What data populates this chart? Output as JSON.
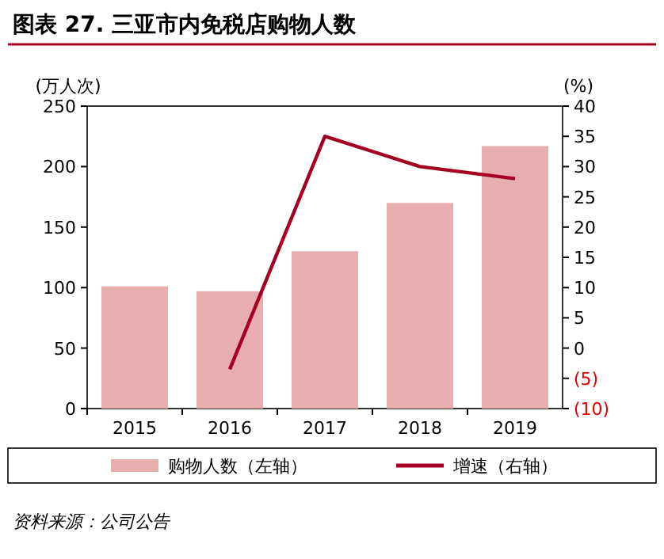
{
  "chart_data": {
    "type": "bar",
    "title": "图表 27. 三亚市内免税店购物人数",
    "ylabel": "(万人次)",
    "y2label": "(%)",
    "categories": [
      "2015",
      "2016",
      "2017",
      "2018",
      "2019"
    ],
    "series": [
      {
        "name": "购物人数（左轴）",
        "color": "#e8adae",
        "values": [
          101,
          97,
          130,
          170,
          217
        ]
      },
      {
        "name": "增速（右轴）",
        "type": "line",
        "axis": "y2",
        "color": "#a50021",
        "values": [
          null,
          -3.5,
          35,
          30,
          28
        ]
      }
    ],
    "ylim": [
      0,
      250
    ],
    "yticks": [
      0,
      50,
      100,
      150,
      200,
      250
    ],
    "y2lim": [
      -10,
      40
    ],
    "y2ticks": [
      {
        "value": -10,
        "label": "(10)"
      },
      {
        "value": -5,
        "label": "(5)"
      },
      0,
      5,
      10,
      15,
      20,
      25,
      30,
      35,
      40
    ],
    "legend": "bottom",
    "marker": "none",
    "annotations": [
      "资料来源：公司公告"
    ]
  }
}
